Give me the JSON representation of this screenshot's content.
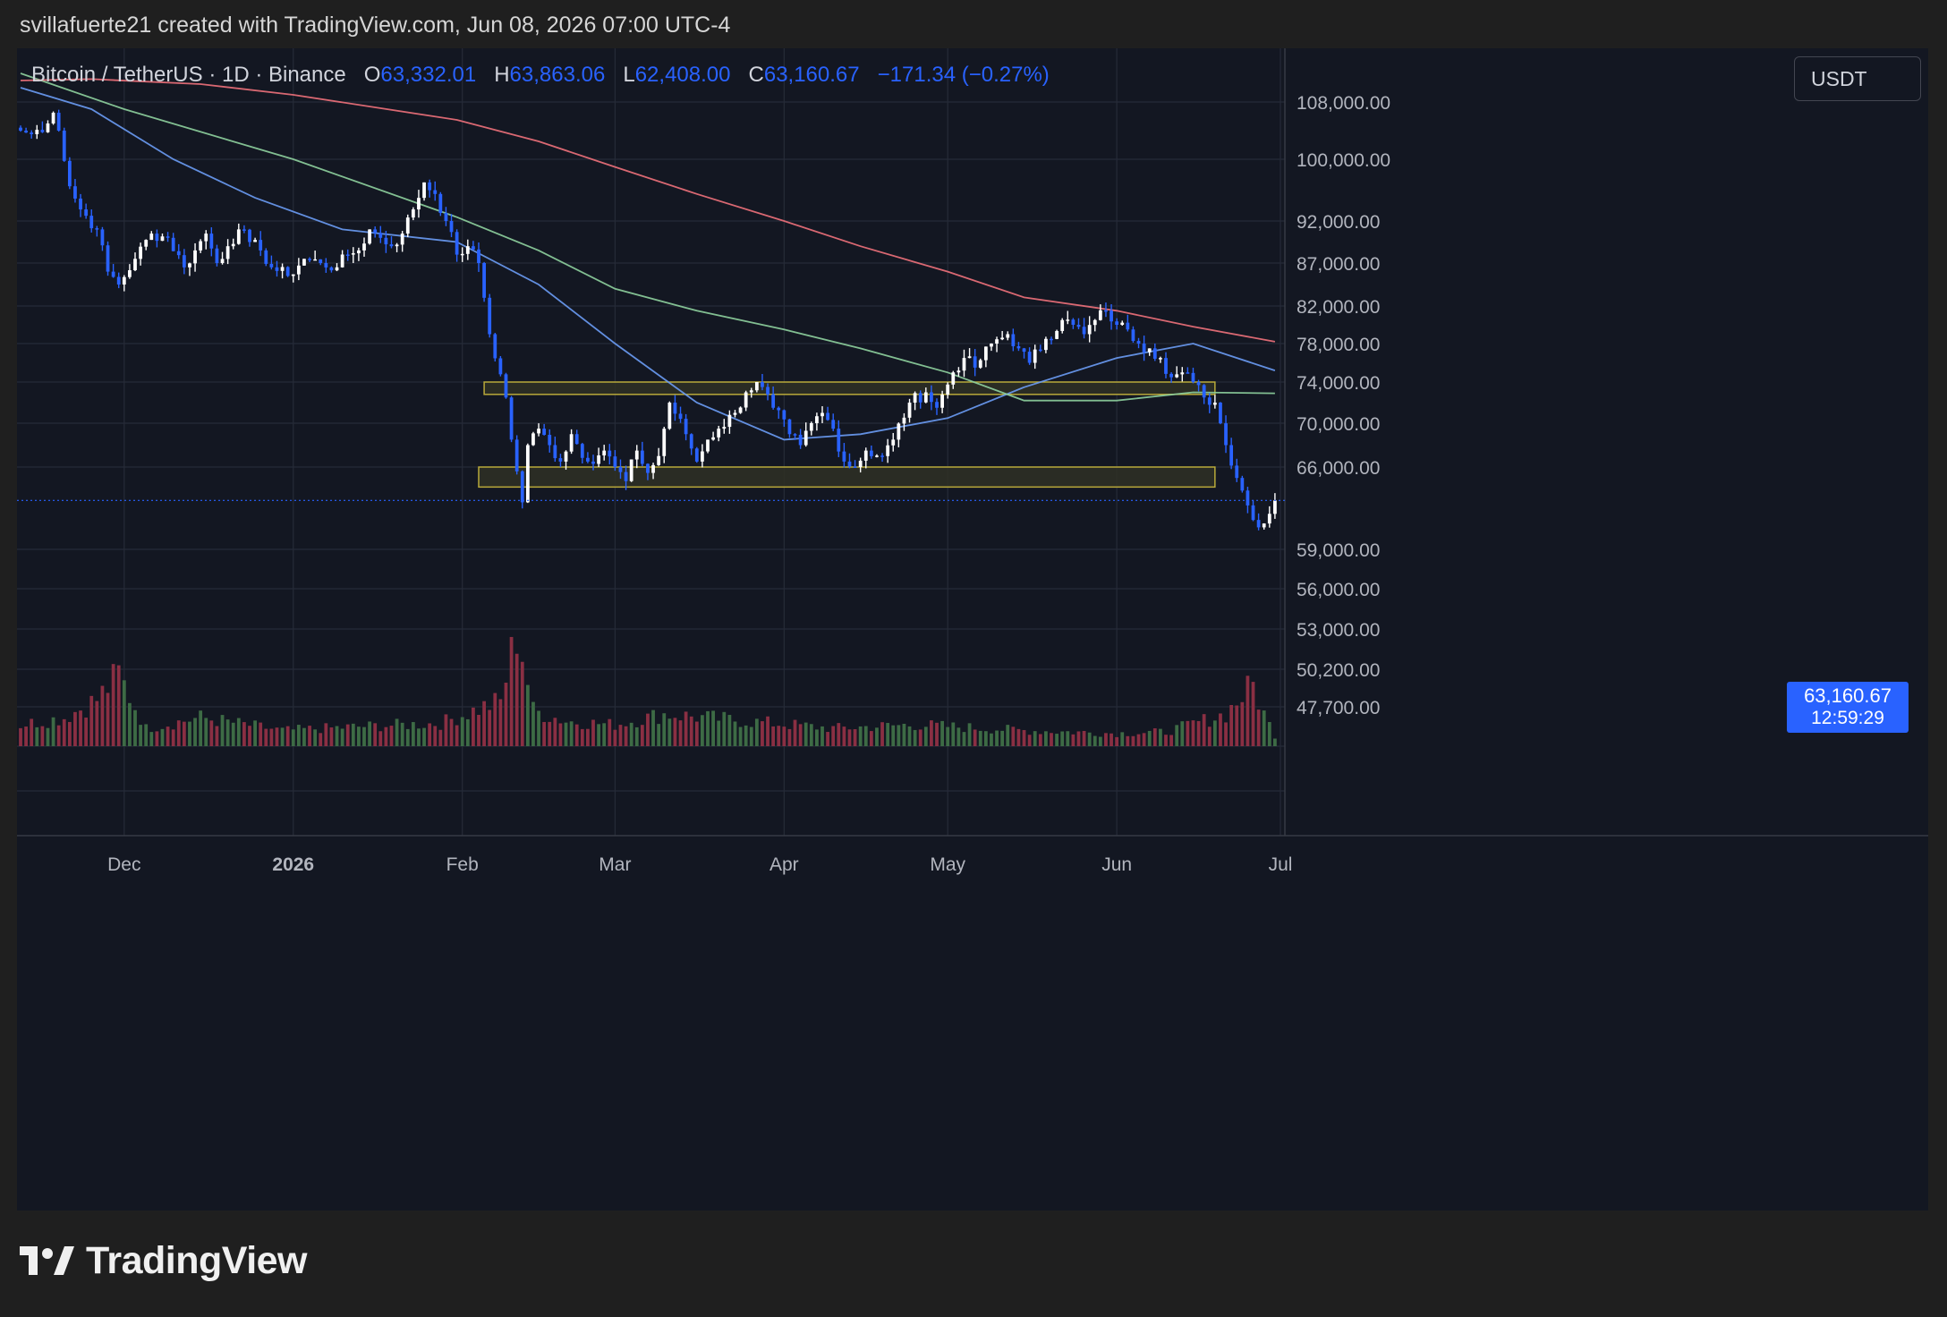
{
  "header": {
    "caption": "svillafuerte21 created with TradingView.com, Jun 08, 2026 07:00 UTC-4"
  },
  "legend": {
    "symbol": "Bitcoin / TetherUS · 1D · Binance",
    "open_key": "O",
    "open": "63,332.01",
    "high_key": "H",
    "high": "63,863.06",
    "low_key": "L",
    "low": "62,408.00",
    "close_key": "C",
    "close": "63,160.67",
    "change": "−171.34 (−0.27%)"
  },
  "currency_button": {
    "label": "USDT"
  },
  "price_tag": {
    "price": "63,160.67",
    "countdown": "12:59:29"
  },
  "footer": {
    "brand": "TradingView"
  },
  "colors": {
    "background": "#131722",
    "page_background": "#1f1f1f",
    "bull_candle": "#ffffff",
    "bear_candle": "#2962ff",
    "volume_up": "#3d6b45",
    "volume_down": "#8a2f43",
    "ma_fast": "#6b9cf5",
    "ma_mid": "#8fd19e",
    "ma_slow": "#f0717b",
    "zone_border": "#b8a93a",
    "zone_fill": "#2f3024"
  },
  "chart_data": {
    "type": "candlestick",
    "title": "Bitcoin / TetherUS · 1D · Binance",
    "last_price": 63160.67,
    "y_axis_ticks": [
      {
        "label": "108,000.00",
        "value": 108000
      },
      {
        "label": "100,000.00",
        "value": 100000
      },
      {
        "label": "92,000.00",
        "value": 92000
      },
      {
        "label": "87,000.00",
        "value": 87000
      },
      {
        "label": "82,000.00",
        "value": 82000
      },
      {
        "label": "78,000.00",
        "value": 78000
      },
      {
        "label": "74,000.00",
        "value": 74000
      },
      {
        "label": "70,000.00",
        "value": 70000
      },
      {
        "label": "66,000.00",
        "value": 66000
      },
      {
        "label": "59,000.00",
        "value": 59000
      },
      {
        "label": "56,000.00",
        "value": 56000
      },
      {
        "label": "53,000.00",
        "value": 53000
      },
      {
        "label": "50,200.00",
        "value": 50200
      },
      {
        "label": "47,700.00",
        "value": 47700
      }
    ],
    "x_axis_ticks": [
      {
        "label": "Dec",
        "date": "2025-12-01",
        "bold": false
      },
      {
        "label": "2026",
        "date": "2026-01-01",
        "bold": true
      },
      {
        "label": "Feb",
        "date": "2026-02-01",
        "bold": false
      },
      {
        "label": "Mar",
        "date": "2026-03-01",
        "bold": false
      },
      {
        "label": "Apr",
        "date": "2026-04-01",
        "bold": false
      },
      {
        "label": "May",
        "date": "2026-05-01",
        "bold": false
      },
      {
        "label": "Jun",
        "date": "2026-06-01",
        "bold": false
      },
      {
        "label": "Jul",
        "date": "2026-07-01",
        "bold": false
      }
    ],
    "x_range": [
      "2025-11-12",
      "2026-07-01"
    ],
    "support_resistance_zones": [
      {
        "low": 72800,
        "high": 74000,
        "from": "2026-02-05",
        "to": "2026-06-19"
      },
      {
        "low": 64300,
        "high": 66000,
        "from": "2026-02-04",
        "to": "2026-06-19"
      }
    ],
    "close_anchors": [
      [
        "2025-11-12",
        104000
      ],
      [
        "2025-11-14",
        103500
      ],
      [
        "2025-11-17",
        105000
      ],
      [
        "2025-11-18",
        106500
      ],
      [
        "2025-11-19",
        104000
      ],
      [
        "2025-11-21",
        96500
      ],
      [
        "2025-11-23",
        93500
      ],
      [
        "2025-11-26",
        91000
      ],
      [
        "2025-11-28",
        86000
      ],
      [
        "2025-11-30",
        84500
      ],
      [
        "2025-12-03",
        87500
      ],
      [
        "2025-12-06",
        90500
      ],
      [
        "2025-12-09",
        90000
      ],
      [
        "2025-12-12",
        86500
      ],
      [
        "2025-12-14",
        88500
      ],
      [
        "2025-12-16",
        90500
      ],
      [
        "2025-12-18",
        87000
      ],
      [
        "2025-12-20",
        89000
      ],
      [
        "2025-12-22",
        91000
      ],
      [
        "2025-12-24",
        89500
      ],
      [
        "2025-12-26",
        88500
      ],
      [
        "2025-12-28",
        86500
      ],
      [
        "2025-12-31",
        85500
      ],
      [
        "2026-01-03",
        87500
      ],
      [
        "2026-01-06",
        87000
      ],
      [
        "2026-01-09",
        86500
      ],
      [
        "2026-01-11",
        88000
      ],
      [
        "2026-01-13",
        88500
      ],
      [
        "2026-01-15",
        91000
      ],
      [
        "2026-01-17",
        90000
      ],
      [
        "2026-01-19",
        89000
      ],
      [
        "2026-01-21",
        90500
      ],
      [
        "2026-01-23",
        93500
      ],
      [
        "2026-01-25",
        97000
      ],
      [
        "2026-01-27",
        95500
      ],
      [
        "2026-01-29",
        92000
      ],
      [
        "2026-01-31",
        88000
      ],
      [
        "2026-02-02",
        89000
      ],
      [
        "2026-02-04",
        87000
      ],
      [
        "2026-02-06",
        79000
      ],
      [
        "2026-02-09",
        72500
      ],
      [
        "2026-02-10",
        68500
      ],
      [
        "2026-02-12",
        63000
      ],
      [
        "2026-02-13",
        68000
      ],
      [
        "2026-02-15",
        69500
      ],
      [
        "2026-02-17",
        68000
      ],
      [
        "2026-02-19",
        66500
      ],
      [
        "2026-02-21",
        69000
      ],
      [
        "2026-02-24",
        66500
      ],
      [
        "2026-02-27",
        67500
      ],
      [
        "2026-03-01",
        66000
      ],
      [
        "2026-03-03",
        64800
      ],
      [
        "2026-03-05",
        67500
      ],
      [
        "2026-03-07",
        65500
      ],
      [
        "2026-03-09",
        67000
      ],
      [
        "2026-03-11",
        72000
      ],
      [
        "2026-03-14",
        69000
      ],
      [
        "2026-03-16",
        66500
      ],
      [
        "2026-03-18",
        68500
      ],
      [
        "2026-03-20",
        69500
      ],
      [
        "2026-03-23",
        71000
      ],
      [
        "2026-03-25",
        73000
      ],
      [
        "2026-03-27",
        74000
      ],
      [
        "2026-03-30",
        71500
      ],
      [
        "2026-04-02",
        69000
      ],
      [
        "2026-04-04",
        68000
      ],
      [
        "2026-04-06",
        70000
      ],
      [
        "2026-04-08",
        71000
      ],
      [
        "2026-04-10",
        69500
      ],
      [
        "2026-04-12",
        66500
      ],
      [
        "2026-04-14",
        66000
      ],
      [
        "2026-04-16",
        67500
      ],
      [
        "2026-04-19",
        67000
      ],
      [
        "2026-04-21",
        68500
      ],
      [
        "2026-04-24",
        72000
      ],
      [
        "2026-04-27",
        73000
      ],
      [
        "2026-04-29",
        71500
      ],
      [
        "2026-05-02",
        75000
      ],
      [
        "2026-05-04",
        76500
      ],
      [
        "2026-05-06",
        75500
      ],
      [
        "2026-05-09",
        78000
      ],
      [
        "2026-05-12",
        79000
      ],
      [
        "2026-05-14",
        77500
      ],
      [
        "2026-05-16",
        76000
      ],
      [
        "2026-05-19",
        78500
      ],
      [
        "2026-05-22",
        80500
      ],
      [
        "2026-05-24",
        80000
      ],
      [
        "2026-05-26",
        79000
      ],
      [
        "2026-05-28",
        80500
      ],
      [
        "2026-05-30",
        81500
      ],
      [
        "2026-06-01",
        80000
      ],
      [
        "2026-06-03",
        79500
      ],
      [
        "2026-06-05",
        78000
      ],
      [
        "2026-06-07",
        77500
      ],
      [
        "2026-06-09",
        76500
      ],
      [
        "2026-06-11",
        74500
      ],
      [
        "2026-06-13",
        75000
      ],
      [
        "2026-06-15",
        74000
      ],
      [
        "2026-06-17",
        72500
      ],
      [
        "2026-06-19",
        72000
      ],
      [
        "2026-06-21",
        68000
      ],
      [
        "2026-06-24",
        64000
      ],
      [
        "2026-06-26",
        61500
      ],
      [
        "2026-06-28",
        61200
      ],
      [
        "2026-06-30",
        63160.67
      ]
    ],
    "moving_averages": [
      {
        "color": "#6b9cf5",
        "points": [
          [
            "2025-11-12",
            110000
          ],
          [
            "2025-11-25",
            107000
          ],
          [
            "2025-12-10",
            100000
          ],
          [
            "2025-12-25",
            95000
          ],
          [
            "2026-01-10",
            91000
          ],
          [
            "2026-01-31",
            89500
          ],
          [
            "2026-02-15",
            84500
          ],
          [
            "2026-03-01",
            78000
          ],
          [
            "2026-03-16",
            72000
          ],
          [
            "2026-04-01",
            68500
          ],
          [
            "2026-04-15",
            69000
          ],
          [
            "2026-05-01",
            70500
          ],
          [
            "2026-05-15",
            73500
          ],
          [
            "2026-06-01",
            76500
          ],
          [
            "2026-06-15",
            78000
          ],
          [
            "2026-06-30",
            75200
          ]
        ]
      },
      {
        "color": "#8fd19e",
        "points": [
          [
            "2025-11-12",
            112000
          ],
          [
            "2025-12-01",
            107000
          ],
          [
            "2026-01-01",
            100000
          ],
          [
            "2026-01-31",
            92500
          ],
          [
            "2026-02-15",
            88500
          ],
          [
            "2026-03-01",
            84000
          ],
          [
            "2026-03-16",
            81500
          ],
          [
            "2026-04-01",
            79500
          ],
          [
            "2026-04-15",
            77500
          ],
          [
            "2026-05-01",
            75000
          ],
          [
            "2026-05-15",
            72200
          ],
          [
            "2026-06-01",
            72200
          ],
          [
            "2026-06-15",
            73000
          ],
          [
            "2026-06-30",
            72900
          ]
        ]
      },
      {
        "color": "#f0717b",
        "points": [
          [
            "2025-11-12",
            111000
          ],
          [
            "2025-11-25",
            111200
          ],
          [
            "2025-12-15",
            110500
          ],
          [
            "2026-01-01",
            109000
          ],
          [
            "2026-01-31",
            105500
          ],
          [
            "2026-02-15",
            102500
          ],
          [
            "2026-03-01",
            99000
          ],
          [
            "2026-03-16",
            95500
          ],
          [
            "2026-04-01",
            92000
          ],
          [
            "2026-04-15",
            89000
          ],
          [
            "2026-05-01",
            86000
          ],
          [
            "2026-05-15",
            83000
          ],
          [
            "2026-06-01",
            81500
          ],
          [
            "2026-06-15",
            79800
          ],
          [
            "2026-06-30",
            78200
          ]
        ]
      }
    ],
    "volume_anchors": [
      [
        "2025-11-12",
        0.3
      ],
      [
        "2025-11-20",
        0.4
      ],
      [
        "2025-11-26",
        0.65
      ],
      [
        "2025-11-30",
        1.0
      ],
      [
        "2025-12-05",
        0.25
      ],
      [
        "2025-12-15",
        0.4
      ],
      [
        "2025-12-30",
        0.22
      ],
      [
        "2026-01-15",
        0.28
      ],
      [
        "2026-01-28",
        0.32
      ],
      [
        "2026-02-05",
        0.55
      ],
      [
        "2026-02-08",
        0.62
      ],
      [
        "2026-02-11",
        1.6
      ],
      [
        "2026-02-12",
        1.3
      ],
      [
        "2026-02-14",
        0.5
      ],
      [
        "2026-02-20",
        0.35
      ],
      [
        "2026-03-01",
        0.3
      ],
      [
        "2026-03-10",
        0.45
      ],
      [
        "2026-03-25",
        0.35
      ],
      [
        "2026-04-10",
        0.25
      ],
      [
        "2026-04-25",
        0.3
      ],
      [
        "2026-05-15",
        0.22
      ],
      [
        "2026-06-01",
        0.18
      ],
      [
        "2026-06-10",
        0.2
      ],
      [
        "2026-06-21",
        0.45
      ],
      [
        "2026-06-24",
        0.7
      ],
      [
        "2026-06-26",
        0.85
      ],
      [
        "2026-06-28",
        0.45
      ],
      [
        "2026-06-30",
        0.15
      ]
    ]
  }
}
